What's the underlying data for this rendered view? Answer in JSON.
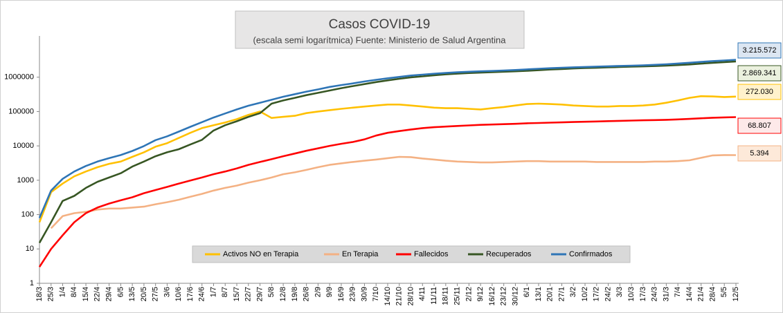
{
  "chart_data": {
    "type": "line",
    "title": "Casos COVID-19",
    "subtitle": "(escala semi logarítmica) Fuente: Ministerio de Salud Argentina",
    "log_scale": true,
    "grid": false,
    "legend": "bottom",
    "ylim": [
      1,
      10000000
    ],
    "yticks": [
      1,
      10,
      100,
      1000,
      10000,
      100000,
      1000000
    ],
    "categories": [
      "18/3",
      "25/3",
      "1/4",
      "8/4",
      "15/4",
      "22/4",
      "29/4",
      "6/5",
      "13/5",
      "20/5",
      "27/5",
      "3/6",
      "10/6",
      "17/6",
      "24/6",
      "1/7",
      "8/7",
      "15/7",
      "22/7",
      "29/7",
      "5/8",
      "12/8",
      "19/8",
      "26/8",
      "2/9",
      "9/9",
      "16/9",
      "23/9",
      "30/9",
      "7/10",
      "14/10",
      "21/10",
      "28/10",
      "4/11",
      "11/11",
      "18/11",
      "25/11",
      "2/12",
      "9/12",
      "16/12",
      "23/12",
      "30/12",
      "6/1",
      "13/1",
      "20/1",
      "27/1",
      "3/2",
      "10/2",
      "17/2",
      "24/2",
      "3/3",
      "10/3",
      "17/3",
      "24/3",
      "31/3",
      "7/4",
      "14/4",
      "21/4",
      "28/4",
      "5/5",
      "12/5"
    ],
    "series": [
      {
        "name": "Activos NO en Terapia",
        "color": "#ffc000",
        "end_label": "272.030",
        "values": [
          60,
          450,
          800,
          1300,
          1800,
          2400,
          3000,
          3500,
          4800,
          6500,
          9500,
          12000,
          17000,
          24000,
          33000,
          40000,
          48000,
          60000,
          80000,
          100000,
          65000,
          70000,
          75000,
          90000,
          100000,
          110000,
          120000,
          130000,
          140000,
          150000,
          160000,
          160000,
          150000,
          140000,
          130000,
          125000,
          125000,
          120000,
          115000,
          125000,
          135000,
          150000,
          165000,
          170000,
          165000,
          160000,
          150000,
          145000,
          140000,
          140000,
          145000,
          145000,
          150000,
          160000,
          180000,
          210000,
          250000,
          280000,
          275000,
          265000,
          272030
        ]
      },
      {
        "name": "En Terapia",
        "color": "#f4b183",
        "end_label": "5.394",
        "values": [
          null,
          40,
          90,
          110,
          120,
          140,
          150,
          150,
          160,
          170,
          200,
          230,
          270,
          330,
          400,
          500,
          600,
          700,
          850,
          1000,
          1200,
          1500,
          1700,
          2000,
          2400,
          2800,
          3100,
          3400,
          3700,
          4000,
          4400,
          4800,
          4700,
          4300,
          4000,
          3700,
          3500,
          3400,
          3300,
          3300,
          3400,
          3500,
          3600,
          3600,
          3500,
          3500,
          3500,
          3500,
          3400,
          3400,
          3400,
          3400,
          3400,
          3500,
          3500,
          3600,
          3800,
          4500,
          5300,
          5400,
          5394
        ]
      },
      {
        "name": "Fallecidos",
        "color": "#ff0000",
        "end_label": "68.807",
        "values": [
          3,
          10,
          25,
          60,
          110,
          160,
          210,
          260,
          320,
          420,
          520,
          640,
          800,
          980,
          1200,
          1500,
          1800,
          2200,
          2800,
          3400,
          4100,
          5000,
          6000,
          7200,
          8500,
          10000,
          11500,
          13000,
          15500,
          20000,
          24000,
          27000,
          30000,
          33000,
          35000,
          36500,
          38000,
          39500,
          41000,
          42000,
          43000,
          44000,
          45500,
          46500,
          47500,
          48500,
          49500,
          50500,
          51500,
          52500,
          53500,
          54500,
          55500,
          56500,
          57500,
          59000,
          61000,
          63500,
          66000,
          67500,
          68807
        ]
      },
      {
        "name": "Recuperados",
        "color": "#375623",
        "end_label": "2.869.341",
        "values": [
          15,
          60,
          250,
          350,
          600,
          900,
          1200,
          1600,
          2500,
          3500,
          5000,
          6500,
          8000,
          11000,
          15000,
          28000,
          40000,
          52000,
          70000,
          90000,
          170000,
          210000,
          250000,
          300000,
          350000,
          410000,
          480000,
          550000,
          630000,
          720000,
          810000,
          900000,
          990000,
          1060000,
          1140000,
          1210000,
          1270000,
          1320000,
          1360000,
          1400000,
          1440000,
          1480000,
          1530000,
          1600000,
          1670000,
          1730000,
          1790000,
          1840000,
          1880000,
          1930000,
          1980000,
          2020000,
          2060000,
          2110000,
          2170000,
          2250000,
          2350000,
          2480000,
          2620000,
          2750000,
          2869341
        ]
      },
      {
        "name": "Confirmados",
        "color": "#2e75b6",
        "end_label": "3.215.572",
        "values": [
          80,
          500,
          1100,
          1800,
          2600,
          3500,
          4400,
          5400,
          7100,
          9900,
          14700,
          19000,
          26000,
          36000,
          49000,
          67000,
          88000,
          115000,
          148000,
          180000,
          220000,
          270000,
          320000,
          380000,
          440000,
          520000,
          590000,
          660000,
          750000,
          840000,
          930000,
          1020000,
          1120000,
          1190000,
          1260000,
          1330000,
          1390000,
          1440000,
          1480000,
          1520000,
          1570000,
          1620000,
          1690000,
          1760000,
          1830000,
          1890000,
          1940000,
          1990000,
          2030000,
          2080000,
          2130000,
          2170000,
          2220000,
          2290000,
          2380000,
          2500000,
          2630000,
          2790000,
          2940000,
          3070000,
          3215572
        ]
      }
    ]
  }
}
